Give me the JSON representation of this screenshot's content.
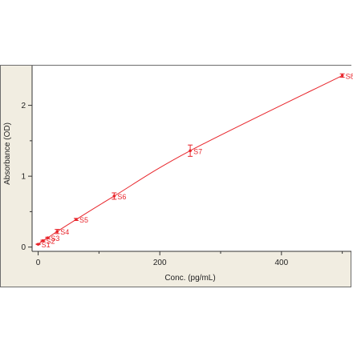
{
  "chart_data": {
    "type": "scatter",
    "title": "",
    "xlabel": "Conc. (pg/mL)",
    "ylabel": "Absorbance (OD)",
    "xlim": [
      -10,
      515
    ],
    "ylim": [
      -0.06,
      2.56
    ],
    "x_ticks": [
      0,
      200,
      400
    ],
    "x_minor_ticks": [
      100,
      300,
      500
    ],
    "y_ticks": [
      0,
      1,
      2
    ],
    "y_minor_ticks": [
      0.5,
      1.5
    ],
    "grid": false,
    "colors": {
      "panel_background": "#f1ede1",
      "plot_background": "#ffffff",
      "border": "#6d6d6d",
      "axis": "#333333",
      "series": "#e8262c"
    },
    "series": [
      {
        "fit": "smooth-curve",
        "points": [
          {
            "label": "S1",
            "x": 0,
            "y": 0.04,
            "err": 0.005
          },
          {
            "label": "S2",
            "x": 7.8,
            "y": 0.09,
            "err": 0.008
          },
          {
            "label": "S3",
            "x": 15.6,
            "y": 0.13,
            "err": 0.01
          },
          {
            "label": "S4",
            "x": 31.2,
            "y": 0.22,
            "err": 0.03
          },
          {
            "label": "S5",
            "x": 62.5,
            "y": 0.39,
            "err": 0.015
          },
          {
            "label": "S6",
            "x": 125,
            "y": 0.72,
            "err": 0.045
          },
          {
            "label": "S7",
            "x": 250,
            "y": 1.36,
            "err": 0.08
          },
          {
            "label": "S8",
            "x": 500,
            "y": 2.42,
            "err": 0.025
          }
        ]
      }
    ]
  }
}
